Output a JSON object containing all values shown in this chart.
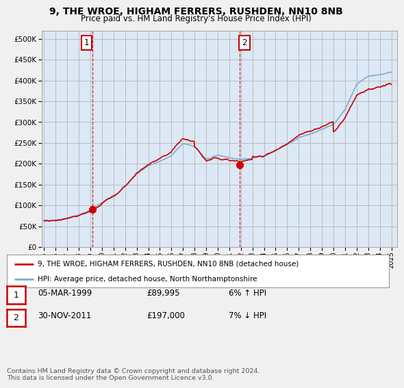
{
  "title": "9, THE WROE, HIGHAM FERRERS, RUSHDEN, NN10 8NB",
  "subtitle": "Price paid vs. HM Land Registry's House Price Index (HPI)",
  "ytick_values": [
    0,
    50000,
    100000,
    150000,
    200000,
    250000,
    300000,
    350000,
    400000,
    450000,
    500000
  ],
  "ylim": [
    0,
    520000
  ],
  "xlim_start": 1994.8,
  "xlim_end": 2025.5,
  "hpi_color": "#7bafd4",
  "price_color": "#cc0000",
  "background_color": "#f0f0f0",
  "plot_bg_color": "#dce8f5",
  "grid_color": "#bbbbbb",
  "transaction1_x": 1999.17,
  "transaction1_y": 89995,
  "transaction2_x": 2011.92,
  "transaction2_y": 197000,
  "legend_line1": "9, THE WROE, HIGHAM FERRERS, RUSHDEN, NN10 8NB (detached house)",
  "legend_line2": "HPI: Average price, detached house, North Northamptonshire",
  "table_row1": [
    "1",
    "05-MAR-1999",
    "£89,995",
    "6% ↑ HPI"
  ],
  "table_row2": [
    "2",
    "30-NOV-2011",
    "£197,000",
    "7% ↓ HPI"
  ],
  "footer": "Contains HM Land Registry data © Crown copyright and database right 2024.\nThis data is licensed under the Open Government Licence v3.0.",
  "xtick_years": [
    1995,
    1996,
    1997,
    1998,
    1999,
    2000,
    2001,
    2002,
    2003,
    2004,
    2005,
    2006,
    2007,
    2008,
    2009,
    2010,
    2011,
    2012,
    2013,
    2014,
    2015,
    2016,
    2017,
    2018,
    2019,
    2020,
    2021,
    2022,
    2023,
    2024,
    2025
  ]
}
